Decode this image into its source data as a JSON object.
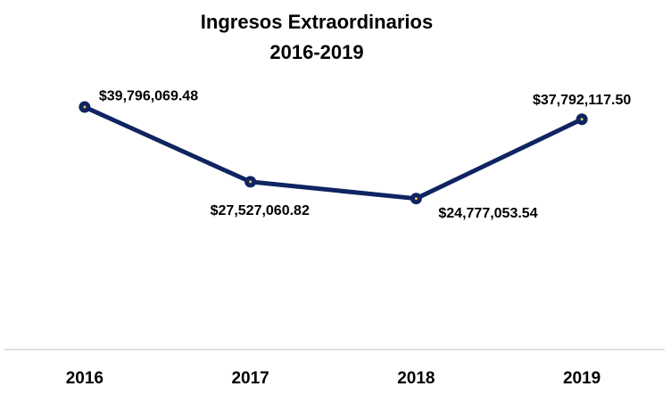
{
  "chart_data": {
    "type": "line",
    "title": "Ingresos Extraordinarios",
    "subtitle": "2016-2019",
    "categories": [
      "2016",
      "2017",
      "2018",
      "2019"
    ],
    "values": [
      39796069.48,
      27527060.82,
      24777053.54,
      37792117.5
    ],
    "value_labels": [
      "$39,796,069.48",
      "$27,527,060.82",
      "$24,777,053.54",
      "$37,792,117.50"
    ],
    "color": "#0f2461",
    "ylim": [
      0,
      45000000
    ]
  }
}
